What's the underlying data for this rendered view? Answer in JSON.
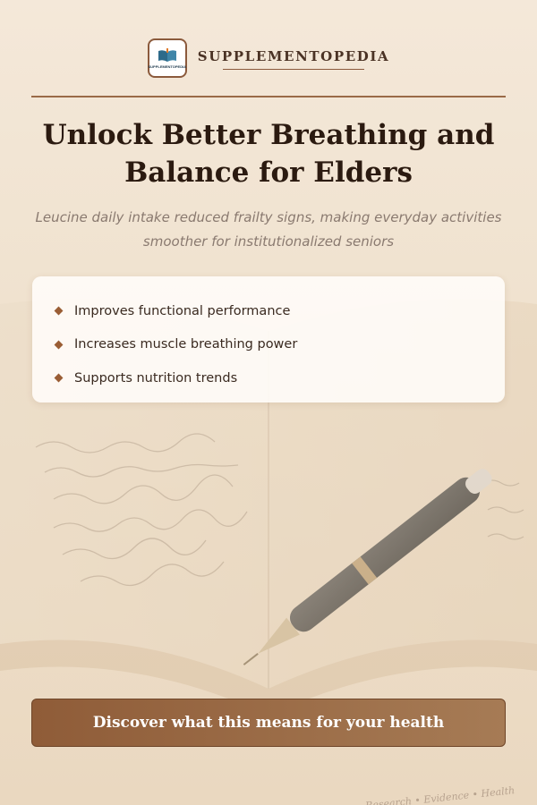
{
  "brand": {
    "name": "SUPPLEMENTOPEDIA",
    "logo_text": "SUPPLEMENTOPEDIA",
    "logo_icon": "book-icon"
  },
  "headline": {
    "line1": "Unlock Better Breathing and",
    "line2": "Balance for Elders"
  },
  "subtitle": {
    "line1": "Leucine daily intake reduced frailty signs, making everyday activities",
    "line2": "smoother for institutionalized seniors"
  },
  "benefits": [
    {
      "label": "Improves functional performance"
    },
    {
      "label": "Increases muscle breathing power"
    },
    {
      "label": "Supports nutrition trends"
    }
  ],
  "cta": {
    "label": "Discover what this means for your health"
  },
  "footer": {
    "tagline": "Research • Evidence • Health"
  },
  "colors": {
    "accent": "#8f5c38",
    "background": "#f4e8d9",
    "title_text": "#2b1a10",
    "subtitle_text": "#8a7a70"
  }
}
